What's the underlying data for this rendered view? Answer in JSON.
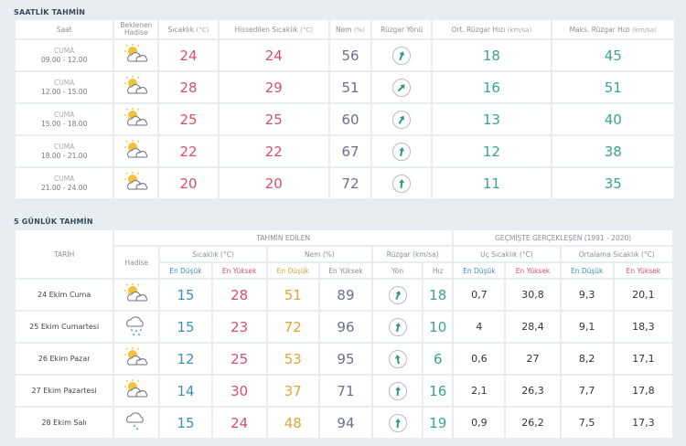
{
  "hourly": {
    "title": "SAATLİK TAHMİN",
    "headers": {
      "saat": "Saat",
      "hadise": "Beklenen Hadise",
      "sicaklik": "Sıcaklık",
      "sicaklik_unit": "(°C)",
      "hissedilen": "Hissedilen Sıcaklık",
      "hissedilen_unit": "(°C)",
      "nem": "Nem",
      "nem_unit": "(%)",
      "yon": "Rüzgar Yönü",
      "ort": "Ort. Rüzgar Hızı",
      "ort_unit": "(km/sa)",
      "maks": "Maks. Rüzgar Hızı",
      "maks_unit": "(km/sa)"
    },
    "rows": [
      {
        "day": "CUMA",
        "time": "09.00 - 12.00",
        "icon": "partly-cloudy-icon",
        "temp": "24",
        "feels": "24",
        "hum": "56",
        "dir_deg": 20,
        "avg": "18",
        "max": "45"
      },
      {
        "day": "CUMA",
        "time": "12.00 - 15.00",
        "icon": "partly-cloudy-icon",
        "temp": "28",
        "feels": "29",
        "hum": "51",
        "dir_deg": 45,
        "avg": "16",
        "max": "51"
      },
      {
        "day": "CUMA",
        "time": "15.00 - 18.00",
        "icon": "partly-cloudy-icon",
        "temp": "25",
        "feels": "25",
        "hum": "60",
        "dir_deg": 30,
        "avg": "13",
        "max": "40"
      },
      {
        "day": "CUMA",
        "time": "18.00 - 21.00",
        "icon": "partly-cloudy-icon",
        "temp": "22",
        "feels": "22",
        "hum": "67",
        "dir_deg": 10,
        "avg": "12",
        "max": "38"
      },
      {
        "day": "CUMA",
        "time": "21.00 - 24.00",
        "icon": "partly-cloudy-icon",
        "temp": "20",
        "feels": "20",
        "hum": "72",
        "dir_deg": 5,
        "avg": "11",
        "max": "35"
      }
    ]
  },
  "daily": {
    "title": "5 GÜNLÜK TAHMİN",
    "headers": {
      "tarih": "TARİH",
      "tahmin": "TAHMİN EDİLEN",
      "gecmis": "GEÇMİŞTE GERÇEKLEŞEN (1991 - 2020)",
      "hadise": "Hadise",
      "sicaklik": "Sıcaklık (°C)",
      "nem": "Nem (%)",
      "ruzgar": "Rüzgar (km/sa)",
      "uc": "Uç Sıcaklık (°C)",
      "ortalama": "Ortalama Sıcaklık (°C)",
      "en_dusuk": "En Düşük",
      "en_yuksek": "En Yüksek",
      "yon": "Yön",
      "hiz": "Hız"
    },
    "rows": [
      {
        "date": "24 Ekim Cuma",
        "icon": "partly-cloudy-icon",
        "tmin": "15",
        "tmax": "28",
        "hmin": "51",
        "hmax": "89",
        "dir_deg": 20,
        "wind": "18",
        "ucmin": "0,7",
        "ucmax": "30,8",
        "ortmin": "9,3",
        "ortmax": "20,1"
      },
      {
        "date": "25 Ekim Cumartesi",
        "icon": "rain-icon",
        "tmin": "15",
        "tmax": "23",
        "hmin": "72",
        "hmax": "96",
        "dir_deg": 10,
        "wind": "10",
        "ucmin": "4",
        "ucmax": "28,4",
        "ortmin": "9,1",
        "ortmax": "18,3"
      },
      {
        "date": "26 Ekim Pazar",
        "icon": "partly-cloudy-icon",
        "tmin": "12",
        "tmax": "25",
        "hmin": "53",
        "hmax": "95",
        "dir_deg": -10,
        "wind": "6",
        "ucmin": "0,6",
        "ucmax": "27",
        "ortmin": "8,2",
        "ortmax": "17,1"
      },
      {
        "date": "27 Ekim Pazartesi",
        "icon": "partly-cloudy-icon",
        "tmin": "14",
        "tmax": "30",
        "hmin": "37",
        "hmax": "71",
        "dir_deg": 5,
        "wind": "16",
        "ucmin": "2,1",
        "ucmax": "26,3",
        "ortmin": "7,7",
        "ortmax": "17,8"
      },
      {
        "date": "28 Ekim Salı",
        "icon": "light-rain-icon",
        "tmin": "15",
        "tmax": "24",
        "hmin": "48",
        "hmax": "94",
        "dir_deg": 5,
        "wind": "19",
        "ucmin": "0,9",
        "ucmax": "26,2",
        "ortmin": "7,5",
        "ortmax": "17,3"
      }
    ]
  },
  "colors": {
    "red": "#d4506a",
    "teal": "#3aa58c",
    "purple": "#6a6f8e",
    "orange": "#e0a43a",
    "blue": "#3f8fb8"
  }
}
